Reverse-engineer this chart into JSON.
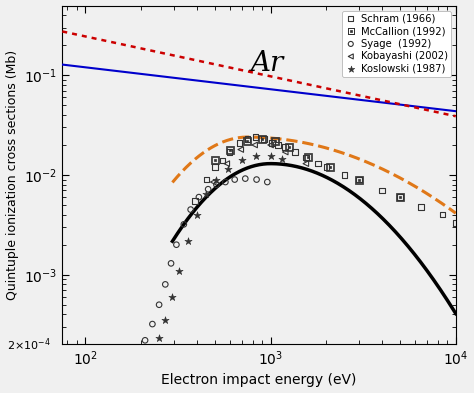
{
  "title": "Ar",
  "xlabel": "Electron impact energy (eV)",
  "ylabel": "Quintuple ionization cross sections (Mb)",
  "xlim": [
    75,
    10000
  ],
  "ylim": [
    0.0002,
    0.5
  ],
  "legend_entries": [
    "Schram (1966)",
    "McCallion (1992)",
    "Syage  (1992)",
    "Kobayashi (2002)",
    "Koslowski (1987)"
  ],
  "blue_line_color": "#0000cc",
  "red_dotted_color": "#cc0000",
  "orange_dashed_color": "#e07818",
  "black_solid_color": "#000000",
  "schram_x": [
    390,
    450,
    500,
    550,
    600,
    680,
    750,
    830,
    920,
    1020,
    1100,
    1200,
    1350,
    1550,
    1800,
    2000,
    2500,
    3000,
    4000,
    5000,
    6500,
    8500,
    10000
  ],
  "schram_y": [
    0.0055,
    0.009,
    0.012,
    0.014,
    0.017,
    0.021,
    0.023,
    0.024,
    0.023,
    0.021,
    0.02,
    0.019,
    0.017,
    0.015,
    0.013,
    0.012,
    0.01,
    0.009,
    0.007,
    0.006,
    0.0048,
    0.004,
    0.0033
  ],
  "mccallion_x": [
    500,
    600,
    750,
    900,
    1050,
    1250,
    1600,
    2100,
    3000,
    5000
  ],
  "mccallion_y": [
    0.014,
    0.018,
    0.022,
    0.023,
    0.022,
    0.019,
    0.015,
    0.012,
    0.009,
    0.006
  ],
  "syage_x": [
    210,
    230,
    250,
    270,
    290,
    310,
    340,
    370,
    410,
    460,
    510,
    570,
    640,
    730,
    840,
    960
  ],
  "syage_y": [
    0.00022,
    0.00032,
    0.0005,
    0.0008,
    0.0013,
    0.002,
    0.0032,
    0.0045,
    0.006,
    0.0072,
    0.008,
    0.0085,
    0.009,
    0.0092,
    0.009,
    0.0085
  ],
  "kobayashi_x": [
    490,
    580,
    690,
    820,
    1000,
    1200,
    1550
  ],
  "kobayashi_y": [
    0.0085,
    0.013,
    0.018,
    0.02,
    0.02,
    0.017,
    0.013
  ],
  "koslowski_x": [
    250,
    270,
    295,
    320,
    360,
    400,
    450,
    510,
    590,
    700,
    830,
    1000,
    1150
  ],
  "koslowski_y": [
    0.00023,
    0.00035,
    0.0006,
    0.0011,
    0.0022,
    0.004,
    0.0065,
    0.009,
    0.0115,
    0.014,
    0.0155,
    0.0155,
    0.0145
  ]
}
